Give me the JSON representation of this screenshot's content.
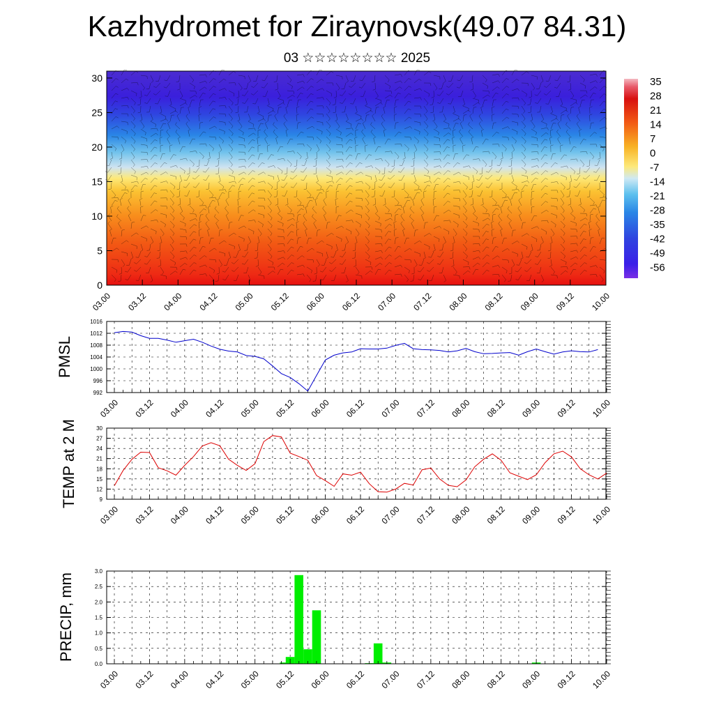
{
  "header": {
    "title": "Kazhydromet for Ziraynovsk(49.07 84.31)",
    "subtitle": "03 ☆☆☆☆☆☆☆☆ 2025"
  },
  "chart_data": [
    {
      "type": "heatmap",
      "ylim": [
        0,
        31
      ],
      "y_ticks": [
        0,
        5,
        10,
        15,
        20,
        25,
        30
      ],
      "x_ticks": [
        "03.00",
        "03.12",
        "04.00",
        "04.12",
        "05.00",
        "05.12",
        "06.00",
        "06.12",
        "07.00",
        "07.12",
        "08.00",
        "08.12",
        "09.00",
        "09.12",
        "10.00"
      ],
      "colorbar_labels": [
        "35",
        "28",
        "21",
        "14",
        "7",
        "0",
        "-7",
        "-14",
        "-21",
        "-28",
        "-35",
        "-42",
        "-49",
        "-56"
      ],
      "colorbar_range": [
        -63,
        42
      ],
      "overlay": "wind barbs"
    },
    {
      "type": "line",
      "ylabel": "PMSL",
      "ylim": [
        992,
        1016
      ],
      "y_ticks": [
        992,
        996,
        1000,
        1004,
        1008,
        1012,
        1016
      ],
      "x_ticks": [
        "03.00",
        "03.12",
        "04.00",
        "04.12",
        "05.00",
        "05.12",
        "06.00",
        "06.12",
        "07.00",
        "07.12",
        "08.00",
        "08.12",
        "09.00",
        "09.12",
        "10.00"
      ],
      "color": "#0000cc",
      "values": [
        1012.2,
        1012.6,
        1012.4,
        1011.2,
        1010.3,
        1010.3,
        1009.7,
        1009.0,
        1009.5,
        1010.0,
        1009.0,
        1007.7,
        1006.6,
        1006.0,
        1005.7,
        1004.5,
        1004.2,
        1003.4,
        1001.0,
        998.4,
        997.1,
        995.0,
        992.5,
        997.8,
        1003.0,
        1004.6,
        1005.4,
        1005.7,
        1006.8,
        1006.7,
        1006.7,
        1007.0,
        1007.9,
        1008.6,
        1006.8,
        1006.5,
        1006.4,
        1006.2,
        1005.7,
        1006.1,
        1006.9,
        1005.8,
        1005.1,
        1005.2,
        1005.4,
        1005.5,
        1004.6,
        1005.8,
        1006.7,
        1005.8,
        1005.0,
        1005.7,
        1006.1,
        1005.8,
        1005.7,
        1006.5
      ]
    },
    {
      "type": "line",
      "ylabel": "TEMP at 2 M",
      "ylim": [
        9,
        30
      ],
      "y_ticks": [
        9,
        12,
        15,
        18,
        21,
        24,
        27,
        30
      ],
      "x_ticks": [
        "03.00",
        "03.12",
        "04.00",
        "04.12",
        "05.00",
        "05.12",
        "06.00",
        "06.12",
        "07.00",
        "07.12",
        "08.00",
        "08.12",
        "09.00",
        "09.12",
        "10.00"
      ],
      "color": "#dd0000",
      "values": [
        13.0,
        17.5,
        20.8,
        22.9,
        22.8,
        18.3,
        17.4,
        16.1,
        19.0,
        21.6,
        24.7,
        25.7,
        24.8,
        20.8,
        19.0,
        17.5,
        19.5,
        26.0,
        27.8,
        27.4,
        22.6,
        21.6,
        20.5,
        16.0,
        14.5,
        12.8,
        16.5,
        16.1,
        17.0,
        13.6,
        11.2,
        11.1,
        12.0,
        13.7,
        13.2,
        17.7,
        18.2,
        15.0,
        13.1,
        12.7,
        14.7,
        18.6,
        20.8,
        22.4,
        20.5,
        16.8,
        15.8,
        14.8,
        16.2,
        19.8,
        22.4,
        23.2,
        21.5,
        18.0,
        16.2,
        15.0,
        16.7
      ]
    },
    {
      "type": "bar",
      "ylabel": "PRECIP, mm",
      "ylim": [
        0,
        3.0
      ],
      "y_ticks": [
        "0.0",
        "0.5",
        "1.0",
        "1.5",
        "2.0",
        "2.5",
        "3.0"
      ],
      "x_ticks": [
        "03.00",
        "03.12",
        "04.00",
        "04.12",
        "05.00",
        "05.12",
        "06.00",
        "06.12",
        "07.00",
        "07.12",
        "08.00",
        "08.12",
        "09.00",
        "09.12",
        "10.00"
      ],
      "color": "#00ee00",
      "bars": [
        {
          "x": 58,
          "value": 0.04
        },
        {
          "x": 60,
          "value": 0.22
        },
        {
          "x": 63,
          "value": 2.87
        },
        {
          "x": 66,
          "value": 0.47
        },
        {
          "x": 69,
          "value": 1.73
        },
        {
          "x": 87,
          "value": 0.02
        },
        {
          "x": 90,
          "value": 0.66
        },
        {
          "x": 93,
          "value": 0.04
        },
        {
          "x": 144,
          "value": 0.04
        }
      ]
    }
  ]
}
